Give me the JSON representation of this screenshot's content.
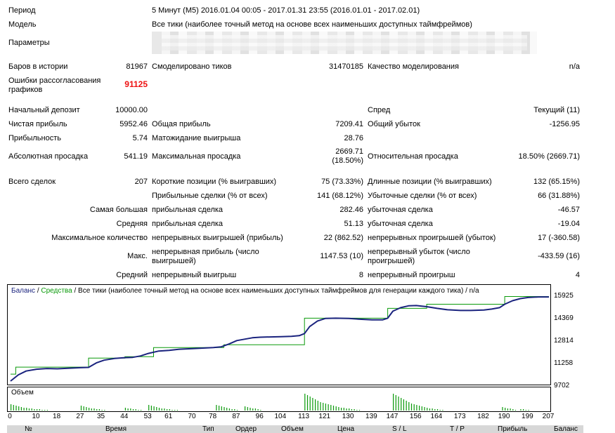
{
  "report": {
    "period_label": "Период",
    "period_value": "5 Минут (M5) 2016.01.04 00:05 - 2017.01.31 23:55 (2016.01.01 - 2017.02.01)",
    "model_label": "Модель",
    "model_value": "Все тики (наиболее точный метод на основе всех наименьших доступных таймфреймов)",
    "params_label": "Параметры",
    "bars_label": "Баров в истории",
    "bars_value": "81967",
    "ticks_label": "Смоделировано тиков",
    "ticks_value": "31470185",
    "quality_label": "Качество моделирования",
    "quality_value": "n/a",
    "mismatch_label_1": "Ошибки рассогласования",
    "mismatch_label_2": "графиков",
    "mismatch_value": "91125",
    "deposit_label": "Начальный депозит",
    "deposit_value": "10000.00",
    "spread_label": "Спред",
    "spread_value": "Текущий (11)",
    "net_profit_label": "Чистая прибыль",
    "net_profit_value": "5952.46",
    "gross_profit_label": "Общая прибыль",
    "gross_profit_value": "7209.41",
    "gross_loss_label": "Общий убыток",
    "gross_loss_value": "-1256.95",
    "profit_factor_label": "Прибыльность",
    "profit_factor_value": "5.74",
    "expected_payoff_label": "Матожидание выигрыша",
    "expected_payoff_value": "28.76",
    "abs_dd_label": "Абсолютная просадка",
    "abs_dd_value": "541.19",
    "max_dd_label": "Максимальная просадка",
    "max_dd_value_1": "2669.71",
    "max_dd_value_2": "(18.50%)",
    "rel_dd_label": "Относительная просадка",
    "rel_dd_value": "18.50% (2669.71)",
    "total_trades_label": "Всего сделок",
    "total_trades_value": "207",
    "short_label": "Короткие позиции (% выигравших)",
    "short_value": "75 (73.33%)",
    "long_label": "Длинные позиции (% выигравших)",
    "long_value": "132 (65.15%)",
    "profit_trades_label": "Прибыльные сделки (% от всех)",
    "profit_trades_value": "141 (68.12%)",
    "loss_trades_label": "Убыточные сделки (% от всех)",
    "loss_trades_value": "66 (31.88%)",
    "largest_label": "Самая большая",
    "largest_profit_label": "прибыльная сделка",
    "largest_profit_value": "282.46",
    "largest_loss_label": "убыточная сделка",
    "largest_loss_value": "-46.57",
    "average_label": "Средняя",
    "average_profit_label": "прибыльная сделка",
    "average_profit_value": "51.13",
    "average_loss_label": "убыточная сделка",
    "average_loss_value": "-19.04",
    "max_count_label": "Максимальное количество",
    "max_cons_wins_label": "непрерывных выигрышей (прибыль)",
    "max_cons_wins_value": "22 (862.52)",
    "max_cons_losses_label": "непрерывных проигрышей (убыток)",
    "max_cons_losses_value": "17 (-360.58)",
    "max_label": "Макс.",
    "max_cons_profit_label_1": "непрерывная прибыль (число",
    "max_cons_profit_label_2": "выигрышей)",
    "max_cons_profit_value": "1147.53 (10)",
    "max_cons_loss_label_1": "непрерывный убыток (число",
    "max_cons_loss_label_2": "проигрышей)",
    "max_cons_loss_value": "-433.59 (16)",
    "avg_label": "Средний",
    "avg_cons_wins_label": "непрерывный выигрыш",
    "avg_cons_wins_value": "8",
    "avg_cons_losses_label": "непрерывный проигрыш",
    "avg_cons_losses_value": "4"
  },
  "chart_data": {
    "type": "line",
    "legend": {
      "balance": "Баланс",
      "sep1": " / ",
      "equity": "Средства",
      "sep2": " / ",
      "rest": "Все тики (наиболее точный метод на основе всех наименьших доступных таймфреймов для генерации каждого тика) / n/a"
    },
    "ylim": [
      9702,
      15925
    ],
    "y_ticks": [
      "15925",
      "14369",
      "12814",
      "11258",
      "9702"
    ],
    "x_ticks": [
      "0",
      "10",
      "18",
      "27",
      "35",
      "44",
      "53",
      "61",
      "70",
      "78",
      "87",
      "96",
      "104",
      "113",
      "121",
      "130",
      "139",
      "147",
      "156",
      "164",
      "173",
      "182",
      "190",
      "199",
      "207"
    ],
    "xlim": [
      0,
      207
    ],
    "colors": {
      "balance": "#1a237e",
      "equity": "#0a9a0a",
      "volume": "#0a9a0a"
    },
    "series": [
      {
        "name": "Баланс",
        "x": [
          0,
          3,
          6,
          10,
          14,
          18,
          22,
          27,
          30,
          33,
          36,
          40,
          44,
          47,
          50,
          53,
          57,
          61,
          65,
          70,
          74,
          78,
          81,
          84,
          87,
          90,
          93,
          96,
          100,
          104,
          108,
          111,
          113,
          115,
          118,
          121,
          125,
          130,
          135,
          139,
          143,
          145,
          147,
          150,
          153,
          156,
          160,
          164,
          168,
          173,
          177,
          182,
          185,
          188,
          190,
          193,
          196,
          199,
          203,
          207
        ],
        "y": [
          9800,
          10250,
          10520,
          10650,
          10700,
          10680,
          10720,
          10760,
          10780,
          11100,
          11300,
          11420,
          11480,
          11500,
          11600,
          11780,
          11950,
          12000,
          12080,
          12120,
          12160,
          12200,
          12250,
          12450,
          12700,
          12800,
          12900,
          12940,
          12960,
          12980,
          13000,
          13050,
          13200,
          13700,
          14100,
          14280,
          14300,
          14280,
          14220,
          14180,
          14180,
          14300,
          14800,
          15050,
          15180,
          15200,
          15120,
          15000,
          14900,
          14850,
          14850,
          14880,
          14950,
          15050,
          15300,
          15550,
          15700,
          15780,
          15820,
          15820
        ]
      },
      {
        "name": "Средства",
        "x": [
          0,
          2,
          2,
          12,
          30,
          30,
          42,
          44,
          44,
          53,
          55,
          55,
          80,
          82,
          82,
          110,
          113,
          113,
          139,
          145,
          145,
          155,
          160,
          160,
          188,
          190,
          190,
          207
        ],
        "y": [
          10300,
          10300,
          10800,
          10800,
          10800,
          11450,
          11450,
          11450,
          11550,
          11550,
          11550,
          12200,
          12200,
          12200,
          12400,
          12400,
          12400,
          14300,
          14300,
          14300,
          15000,
          15000,
          15000,
          15300,
          15300,
          15300,
          15850,
          15850
        ]
      }
    ],
    "volume_label": "Объем",
    "volume": [
      9,
      8,
      7,
      6,
      5,
      4,
      4,
      3,
      3,
      2,
      2,
      2,
      1,
      1,
      1,
      0,
      0,
      0,
      0,
      0,
      0,
      0,
      0,
      0,
      0,
      0,
      0,
      0,
      0,
      0,
      0,
      0,
      0,
      0,
      0,
      0,
      0,
      0,
      0,
      0,
      0,
      0,
      0,
      0,
      0,
      0,
      0,
      0,
      0,
      0,
      0,
      0,
      0,
      0,
      0,
      0,
      0,
      0,
      0,
      0,
      0,
      0,
      0,
      0,
      0,
      0,
      0,
      0,
      0,
      0,
      0,
      0,
      0,
      0,
      0,
      0,
      0,
      0,
      0,
      0,
      0,
      0,
      0,
      0,
      0,
      0,
      0,
      0,
      0,
      0,
      0,
      0,
      0,
      0,
      0,
      0,
      0,
      0,
      0,
      0,
      0,
      0,
      0,
      0,
      0,
      0,
      0,
      0,
      0,
      0,
      0,
      0,
      0,
      0,
      0,
      0,
      0,
      0,
      0,
      0,
      0,
      0,
      0,
      0,
      0,
      0,
      0,
      0,
      0,
      0,
      0,
      0,
      0,
      0,
      0,
      0,
      0,
      0,
      0,
      0,
      0,
      0,
      0,
      0,
      0,
      0,
      0,
      0,
      0,
      0,
      0,
      0,
      0,
      0,
      0,
      0,
      0,
      0,
      0,
      0,
      0,
      0,
      0,
      0,
      0,
      0,
      0,
      0,
      0,
      0,
      0,
      0,
      0,
      0,
      0,
      0,
      0,
      0,
      0,
      0,
      0,
      0,
      0,
      0,
      0,
      0,
      0,
      0,
      0,
      0,
      0,
      0,
      0,
      0,
      0,
      0,
      0,
      0,
      0,
      0,
      0,
      0,
      0,
      0,
      0,
      0,
      0,
      0
    ],
    "volume_groups": [
      {
        "start": 0,
        "heights": [
          9,
          8,
          7,
          6,
          5,
          4,
          4,
          3,
          3,
          2,
          2,
          2,
          1,
          1,
          1
        ]
      },
      {
        "start": 27,
        "heights": [
          7,
          6,
          5,
          4,
          3,
          3,
          2,
          2,
          1,
          1
        ]
      },
      {
        "start": 44,
        "heights": [
          4,
          3,
          3,
          2,
          2,
          1,
          1
        ]
      },
      {
        "start": 53,
        "heights": [
          8,
          7,
          6,
          5,
          4,
          3,
          3,
          2,
          2,
          1,
          1,
          1
        ]
      },
      {
        "start": 79,
        "heights": [
          8,
          7,
          6,
          5,
          4,
          3,
          2,
          2,
          1
        ]
      },
      {
        "start": 90,
        "heights": [
          6,
          5,
          4,
          3,
          3,
          2,
          1
        ]
      },
      {
        "start": 113,
        "heights": [
          24,
          22,
          20,
          18,
          16,
          14,
          12,
          11,
          10,
          9,
          8,
          7,
          6,
          5,
          4,
          4,
          3,
          3,
          2,
          2,
          1,
          1
        ]
      },
      {
        "start": 147,
        "heights": [
          24,
          22,
          20,
          18,
          16,
          14,
          12,
          10,
          9,
          8,
          7,
          6,
          5,
          4,
          3,
          3,
          2,
          2,
          1,
          1
        ]
      },
      {
        "start": 189,
        "heights": [
          5,
          4,
          3,
          3,
          2,
          1
        ]
      },
      {
        "start": 196,
        "heights": [
          2,
          2,
          1,
          1
        ]
      }
    ]
  },
  "table_header": [
    "№",
    "Время",
    "Тип",
    "Ордер",
    "Объем",
    "Цена",
    "S / L",
    "T / P",
    "Прибыль",
    "Баланс"
  ]
}
